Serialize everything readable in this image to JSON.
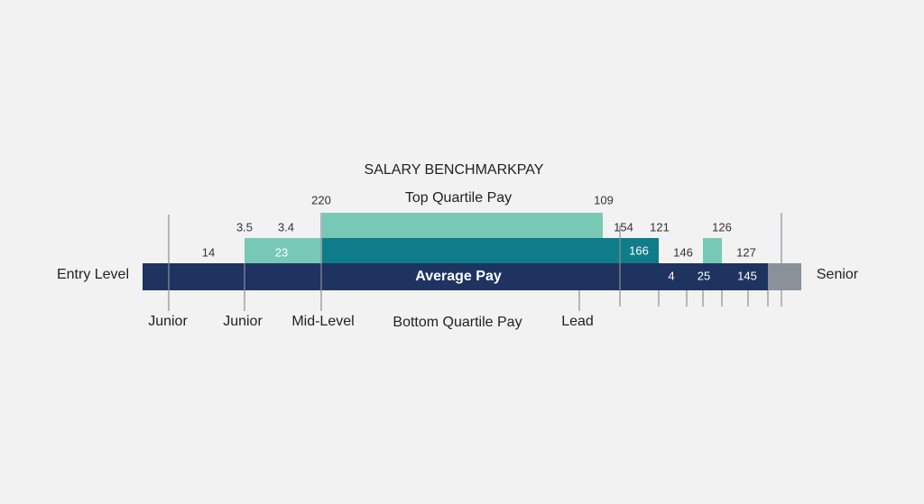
{
  "title": "SALARY BENCHMARKPAY",
  "top_band": {
    "label": "Top Quartile Pay",
    "start": 220,
    "end": 109
  },
  "middle_row": {
    "values": [
      3.5,
      3.4,
      154,
      121,
      126
    ]
  },
  "lower_row": {
    "values": [
      14,
      23,
      166,
      146,
      127
    ]
  },
  "main_band": {
    "left_label": "Entry Level",
    "label": "Average Pay",
    "values": [
      4,
      25,
      145
    ],
    "right_label": "Senior"
  },
  "bottom_labels": [
    "Junior",
    "Junior",
    "Mid-Level",
    "Bottom Quartile Pay",
    "Lead"
  ]
}
